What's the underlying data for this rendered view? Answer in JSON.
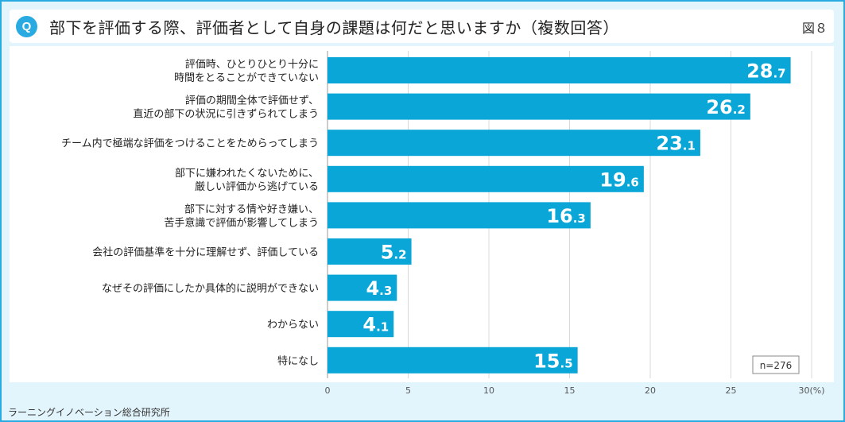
{
  "header": {
    "badge": "Q",
    "title": "部下を評価する際、評価者として自身の課題は何だと思いますか（複数回答）",
    "figure": "図８"
  },
  "source": "ラーニングイノベーション総合研究所",
  "colors": {
    "bar": "#0aa6d8",
    "frame": "#29abe2",
    "grid": "#d9d9d9"
  },
  "chart_data": {
    "type": "bar",
    "orientation": "horizontal",
    "categories": [
      [
        "評価時、ひとりひとり十分に",
        "時間をとることができていない"
      ],
      [
        "評価の期間全体で評価せず、",
        "直近の部下の状況に引きずられてしまう"
      ],
      [
        "チーム内で極端な評価をつけることをためらってしまう"
      ],
      [
        "部下に嫌われたくないために、",
        "厳しい評価から逃げている"
      ],
      [
        "部下に対する情や好き嫌い、",
        "苦手意識で評価が影響してしまう"
      ],
      [
        "会社の評価基準を十分に理解せず、評価している"
      ],
      [
        "なぜその評価にしたか具体的に説明ができない"
      ],
      [
        "わからない"
      ],
      [
        "特になし"
      ]
    ],
    "values": [
      28.7,
      26.2,
      23.1,
      19.6,
      16.3,
      5.2,
      4.3,
      4.1,
      15.5
    ],
    "value_labels": [
      [
        "28",
        ".7"
      ],
      [
        "26",
        ".2"
      ],
      [
        "23",
        ".1"
      ],
      [
        "19",
        ".6"
      ],
      [
        "16",
        ".3"
      ],
      [
        "5",
        ".2"
      ],
      [
        "4",
        ".3"
      ],
      [
        "4",
        ".1"
      ],
      [
        "15",
        ".5"
      ]
    ],
    "xlim": [
      0,
      30
    ],
    "xticks": [
      "0",
      "5",
      "10",
      "15",
      "20",
      "25",
      "30(%)"
    ],
    "sample": "n=276",
    "grid": true
  }
}
